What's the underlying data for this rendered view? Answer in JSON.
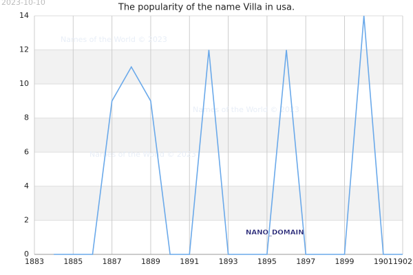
{
  "chart_data": {
    "type": "line",
    "title": "The popularity of the name Villa in usa.",
    "date_stamp": "2023-10-10",
    "watermarks": [
      "Names of the World © 2023",
      "Names of the World © 2023",
      "Names of the World © 2023"
    ],
    "annotation": "NANO_DOMAIN",
    "x": [
      1884,
      1885,
      1886,
      1887,
      1888,
      1889,
      1890,
      1891,
      1892,
      1893,
      1894,
      1895,
      1896,
      1897,
      1898,
      1899,
      1900,
      1901,
      1902
    ],
    "values": [
      0,
      0,
      0,
      9,
      11,
      9,
      0,
      0,
      12,
      0,
      0,
      0,
      12,
      0,
      0,
      0,
      14,
      0,
      0
    ],
    "color": "#6aa9ea",
    "xlim": [
      1883,
      1902
    ],
    "xticks": [
      1883,
      1885,
      1887,
      1889,
      1891,
      1893,
      1895,
      1897,
      1899,
      1901,
      1902
    ],
    "ylim": [
      0,
      14
    ],
    "yticks": [
      0,
      2,
      4,
      6,
      8,
      10,
      12,
      14
    ],
    "grid": true,
    "bands": true
  }
}
